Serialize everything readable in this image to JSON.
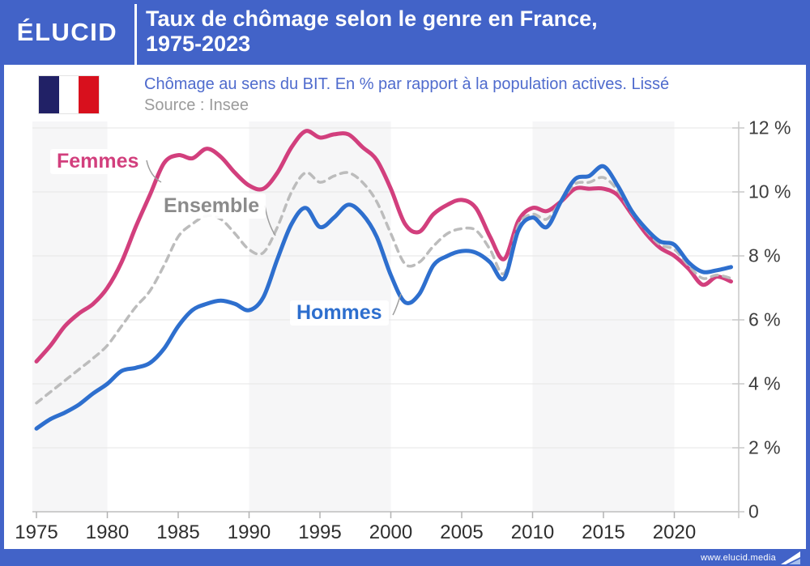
{
  "colors": {
    "accent_blue": "#4263c8",
    "femmes_pink": "#d23f7d",
    "hommes_blue": "#2e6fce",
    "ensemble_gray": "#bcbcbc",
    "subtitle_blue": "#4f6bcd",
    "source_gray": "#9b9b9b",
    "flag_navy": "#212166",
    "flag_red": "#d8101d",
    "stripe_gray": "#f6f6f7"
  },
  "header": {
    "logo": "ÉLUCID",
    "title_line1": "Taux de chômage selon le genre en France,",
    "title_line2": "1975-2023"
  },
  "subheader": {
    "subtitle": "Chômage au sens du BIT. En % par rapport à la population actives. Lissé",
    "source": "Source : Insee"
  },
  "footer": {
    "url": "www.elucid.media"
  },
  "chart_data": {
    "type": "line",
    "title": "Taux de chômage selon le genre en France, 1975-2023",
    "unit": "%",
    "grid": "horizontal",
    "legend_position": "inline-labels",
    "ylim": [
      0,
      12
    ],
    "y_ticks": [
      {
        "value": 12,
        "label": "12 %"
      },
      {
        "value": 10,
        "label": "10 %"
      },
      {
        "value": 8,
        "label": "8 %"
      },
      {
        "value": 6,
        "label": "6 %"
      },
      {
        "value": 4,
        "label": "4 %"
      },
      {
        "value": 2,
        "label": "2 %"
      },
      {
        "value": 0,
        "label": "0"
      }
    ],
    "x_ticks": [
      1975,
      1980,
      1985,
      1990,
      1995,
      2000,
      2005,
      2010,
      2015,
      2020
    ],
    "shaded_decades": [
      [
        1975,
        1980
      ],
      [
        1990,
        2000
      ],
      [
        2010,
        2020
      ]
    ],
    "x": [
      1975,
      1976,
      1977,
      1978,
      1979,
      1980,
      1981,
      1982,
      1983,
      1984,
      1985,
      1986,
      1987,
      1988,
      1989,
      1990,
      1991,
      1992,
      1993,
      1994,
      1995,
      1996,
      1997,
      1998,
      1999,
      2000,
      2001,
      2002,
      2003,
      2004,
      2005,
      2006,
      2007,
      2008,
      2009,
      2010,
      2011,
      2012,
      2013,
      2014,
      2015,
      2016,
      2017,
      2018,
      2019,
      2020,
      2021,
      2022,
      2023,
      2024
    ],
    "series": [
      {
        "name": "Femmes",
        "color": "#d23f7d",
        "style": "solid",
        "values": [
          4.7,
          5.2,
          5.8,
          6.2,
          6.5,
          7.0,
          7.8,
          8.9,
          9.9,
          10.9,
          11.15,
          11.05,
          11.35,
          11.1,
          10.6,
          10.2,
          10.1,
          10.6,
          11.4,
          11.9,
          11.7,
          11.8,
          11.8,
          11.4,
          11.0,
          10.1,
          9.0,
          8.75,
          9.3,
          9.6,
          9.75,
          9.5,
          8.6,
          7.9,
          9.1,
          9.5,
          9.4,
          9.7,
          10.1,
          10.1,
          10.1,
          9.9,
          9.3,
          8.7,
          8.25,
          8.0,
          7.6,
          7.1,
          7.35,
          7.2
        ]
      },
      {
        "name": "Ensemble",
        "color": "#bcbcbc",
        "style": "dashed",
        "values": [
          3.4,
          3.75,
          4.1,
          4.45,
          4.8,
          5.2,
          5.8,
          6.4,
          6.9,
          7.7,
          8.6,
          9.0,
          9.25,
          9.15,
          8.7,
          8.2,
          8.1,
          8.9,
          10.0,
          10.6,
          10.3,
          10.5,
          10.6,
          10.3,
          9.7,
          8.7,
          7.75,
          7.8,
          8.3,
          8.7,
          8.85,
          8.8,
          8.2,
          7.45,
          8.95,
          9.3,
          9.15,
          9.7,
          10.25,
          10.3,
          10.45,
          10.05,
          9.35,
          8.8,
          8.35,
          8.2,
          7.7,
          7.3,
          7.4,
          7.3
        ]
      },
      {
        "name": "Hommes",
        "color": "#2e6fce",
        "style": "solid",
        "values": [
          2.6,
          2.9,
          3.1,
          3.35,
          3.7,
          4.0,
          4.4,
          4.5,
          4.65,
          5.1,
          5.8,
          6.3,
          6.5,
          6.6,
          6.5,
          6.3,
          6.7,
          7.9,
          9.0,
          9.5,
          8.9,
          9.2,
          9.6,
          9.3,
          8.6,
          7.4,
          6.55,
          6.8,
          7.7,
          8.0,
          8.15,
          8.1,
          7.8,
          7.3,
          8.8,
          9.2,
          8.9,
          9.7,
          10.4,
          10.5,
          10.8,
          10.2,
          9.4,
          8.85,
          8.45,
          8.35,
          7.8,
          7.5,
          7.55,
          7.65
        ]
      }
    ]
  }
}
